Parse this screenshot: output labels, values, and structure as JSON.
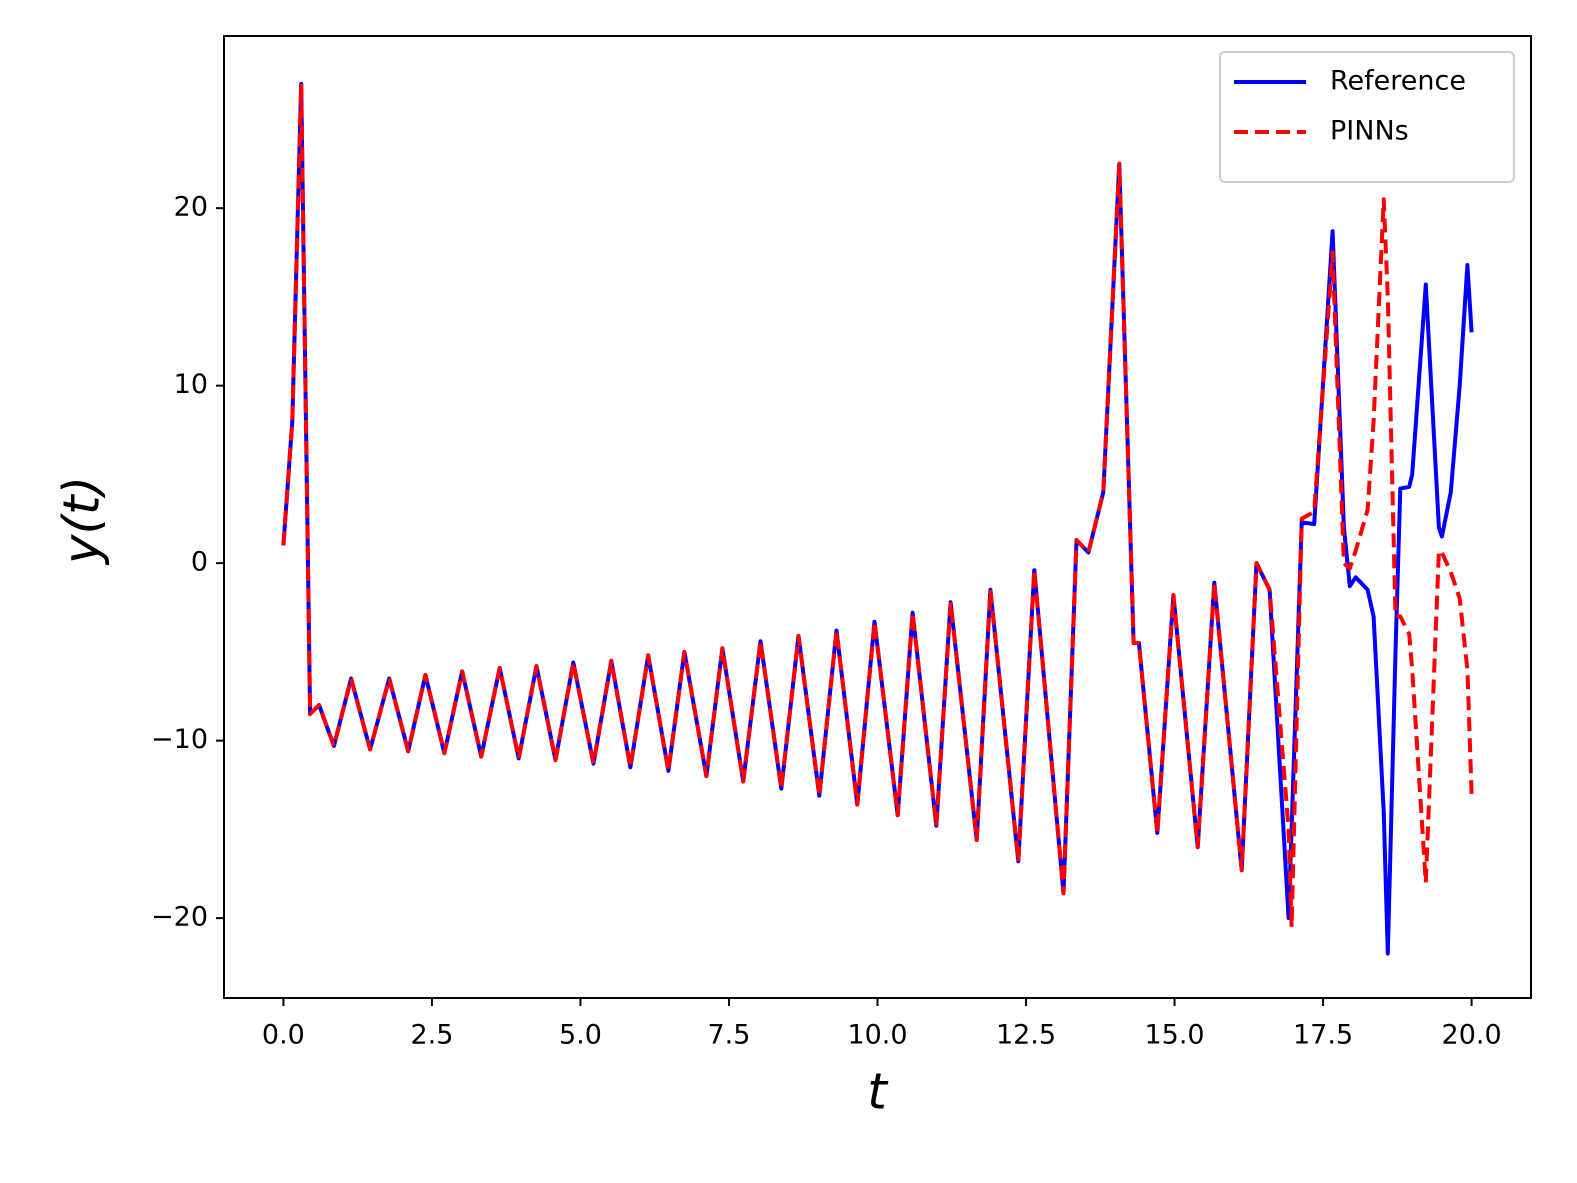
{
  "chart_data": {
    "type": "line",
    "xlabel": "t",
    "ylabel": "y(t)",
    "x": [
      0,
      0.15,
      0.3,
      0.45,
      0.6,
      0.85,
      1.14,
      1.46,
      1.78,
      2.1,
      2.39,
      2.71,
      3.01,
      3.33,
      3.64,
      3.96,
      4.26,
      4.58,
      4.88,
      5.22,
      5.52,
      5.84,
      6.14,
      6.48,
      6.75,
      7.12,
      7.39,
      7.74,
      8.03,
      8.38,
      8.67,
      9.02,
      9.31,
      9.66,
      9.95,
      10.34,
      10.59,
      10.99,
      11.23,
      11.67,
      11.9,
      12.37,
      12.64,
      13.13,
      13.35,
      13.55,
      13.8,
      14.07,
      14.31,
      14.4,
      14.71,
      14.98,
      15.39,
      15.67,
      16.13,
      16.38,
      16.6,
      16.92,
      16.97,
      17.14,
      17.35,
      17.66,
      17.85,
      17.95,
      18.05,
      18.25,
      18.35,
      18.52,
      18.59,
      18.72,
      18.8,
      18.95,
      19.0,
      19.23,
      19.45,
      19.5,
      19.65,
      19.8,
      19.93,
      20
    ],
    "series": [
      {
        "name": "Reference",
        "color": "#0000ff",
        "dash": false,
        "values": [
          1,
          8,
          27,
          -8.5,
          -8,
          -10.3,
          -6.5,
          -10.5,
          -6.5,
          -10.6,
          -6.3,
          -10.7,
          -6.1,
          -10.9,
          -5.9,
          -11.0,
          -5.8,
          -11.1,
          -5.6,
          -11.3,
          -5.5,
          -11.5,
          -5.2,
          -11.7,
          -5.0,
          -12.0,
          -4.8,
          -12.3,
          -4.4,
          -12.7,
          -4.1,
          -13.1,
          -3.8,
          -13.6,
          -3.3,
          -14.2,
          -2.8,
          -14.8,
          -2.2,
          -15.6,
          -1.5,
          -16.8,
          -0.4,
          -18.6,
          1.3,
          0.6,
          4,
          22.5,
          -4.5,
          -4.5,
          -15.2,
          -1.8,
          -16,
          -1.1,
          -17.3,
          0,
          -1.5,
          -20,
          -15,
          2.3,
          2.2,
          18.7,
          2,
          -1.3,
          -0.8,
          -1.5,
          -3,
          -14,
          -22,
          -5,
          4.2,
          4.3,
          5,
          15.7,
          2,
          1.5,
          4,
          10,
          16.8,
          13
        ]
      },
      {
        "name": "PINNs",
        "color": "#ff0000",
        "dash": true,
        "values": [
          1,
          8,
          27,
          -8.5,
          -8,
          -10.3,
          -6.5,
          -10.5,
          -6.5,
          -10.6,
          -6.3,
          -10.7,
          -6.1,
          -10.9,
          -5.9,
          -11.0,
          -5.8,
          -11.1,
          -5.6,
          -11.3,
          -5.5,
          -11.5,
          -5.2,
          -11.7,
          -5.0,
          -12.0,
          -4.8,
          -12.3,
          -4.4,
          -12.7,
          -4.1,
          -13.1,
          -3.8,
          -13.6,
          -3.3,
          -14.2,
          -2.8,
          -14.8,
          -2.2,
          -15.6,
          -1.5,
          -16.8,
          -0.4,
          -18.6,
          1.3,
          0.6,
          4,
          22.5,
          -4.5,
          -4.5,
          -15.2,
          -1.8,
          -16,
          -1.1,
          -17.3,
          0,
          -1.5,
          -15,
          -20.5,
          2.5,
          2.9,
          17.5,
          0,
          -0.3,
          0.7,
          3,
          8,
          20.5,
          15,
          -3,
          -3,
          -4,
          -6,
          -18,
          0.7,
          0.6,
          -0.5,
          -2,
          -6,
          -13
        ]
      }
    ],
    "xlim": [
      -1.0,
      21.0
    ],
    "ylim": [
      -24.5,
      29.7
    ],
    "xticks": [
      {
        "value": 0,
        "label": "0.0"
      },
      2.5,
      {
        "value": 5,
        "label": "5.0"
      },
      7.5,
      {
        "value": 10,
        "label": "10.0"
      },
      12.5,
      {
        "value": 15,
        "label": "15.0"
      },
      17.5,
      {
        "value": 20,
        "label": "20.0"
      }
    ],
    "yticks": [
      {
        "value": -20,
        "label": "−20"
      },
      {
        "value": -10,
        "label": "−10"
      },
      0,
      10,
      20
    ],
    "legend": "upper right",
    "grid": false
  }
}
